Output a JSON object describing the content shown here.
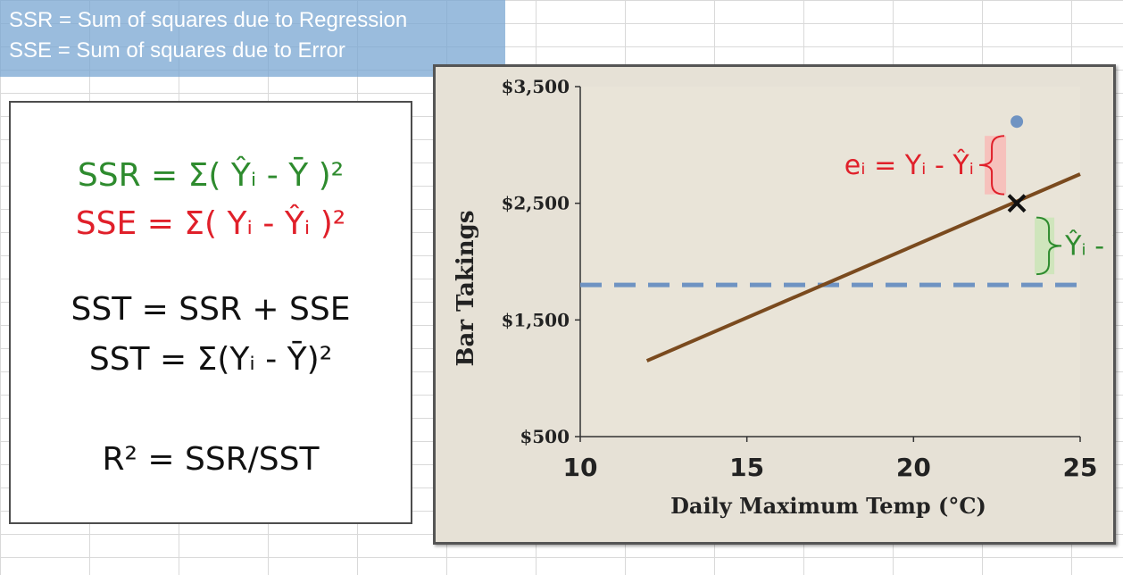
{
  "caption": {
    "line1": "SSR = Sum of squares due to Regression",
    "line2": "SSE = Sum of squares due to Error"
  },
  "formulas": {
    "ssr": "SSR = Σ( Ŷᵢ - Ȳ )²",
    "sse": "SSE = Σ( Yᵢ - Ŷᵢ )²",
    "sst_sum": "SST = SSR + SSE",
    "sst_def": "SST = Σ(Yᵢ - Ȳ)²",
    "r2": "R² = SSR/SST"
  },
  "colors": {
    "green": "#2e8b2e",
    "red": "#e0202a",
    "regression_line": "#7a4a1e",
    "mean_line": "#6f93c2",
    "point": "#6f93c2"
  },
  "chart_data": {
    "type": "line",
    "xlabel": "Daily Maximum Temp (°C)",
    "ylabel": "Bar Takings",
    "xlim": [
      10,
      25
    ],
    "ylim": [
      500,
      3500
    ],
    "x_ticks": [
      "10",
      "15",
      "20",
      "25"
    ],
    "y_ticks": [
      "$500",
      "$1,500",
      "$2,500",
      "$3,500"
    ],
    "x_tick_values": [
      10,
      15,
      20,
      25
    ],
    "y_tick_values": [
      500,
      1500,
      2500,
      3500
    ],
    "regression_line": {
      "x": [
        12,
        25
      ],
      "y": [
        1150,
        2750
      ]
    },
    "mean_line": {
      "y": 1800,
      "x": [
        10,
        25
      ]
    },
    "observed_point": {
      "x": 23.1,
      "y": 3200
    },
    "predicted_point": {
      "x": 23.1,
      "y": 2500
    },
    "annotations": {
      "error": "eᵢ = Yᵢ - Ŷᵢ",
      "explained": "Ŷᵢ - Ȳ"
    }
  }
}
